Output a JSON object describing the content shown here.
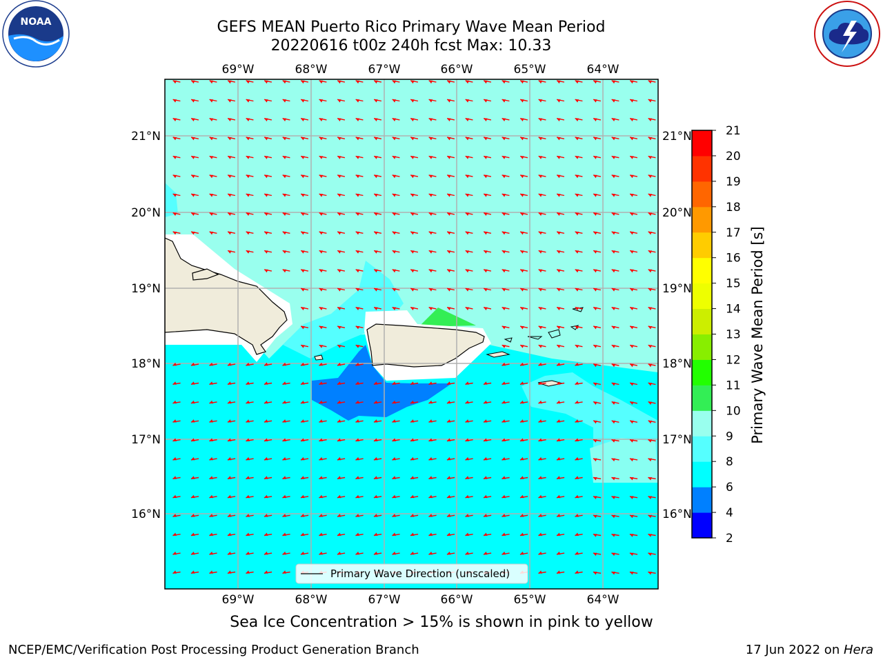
{
  "title": {
    "line1": "GEFS MEAN Puerto Rico Primary Wave Mean Period",
    "line2": "20220616 t00z 240h fcst   Max: 10.33"
  },
  "logos": {
    "noaa_text": "NOAA",
    "noaa_ring_text": "NATIONAL OCEANIC AND ATMOSPHERIC ADMINISTRATION · U.S. DEPARTMENT OF COMMERCE",
    "nws_ring_text": "NATIONAL WEATHER SERVICE",
    "noaa_icon": "noaa-logo-icon",
    "nws_icon": "nws-logo-icon"
  },
  "map": {
    "lon_labels": [
      "69°W",
      "68°W",
      "67°W",
      "66°W",
      "65°W",
      "64°W"
    ],
    "lat_labels": [
      "21°N",
      "20°N",
      "19°N",
      "18°N",
      "17°N",
      "16°N"
    ],
    "extent": {
      "lon_min": -70.0,
      "lon_max": -63.25,
      "lat_min": 15.0,
      "lat_max": 21.75
    },
    "wave_direction": "from east-northeast toward west-southwest (south of islands: toward west-northwest)",
    "arrow_color": "#ff0000",
    "land_color": "#f0ecdb"
  },
  "legend": {
    "label": "Primary Wave Direction (unscaled)"
  },
  "colorbar": {
    "title": "Primary Wave Mean Period [s]",
    "ticks": [
      "2",
      "4",
      "6",
      "8",
      "9",
      "10",
      "11",
      "12",
      "13",
      "14",
      "15",
      "16",
      "17",
      "18",
      "19",
      "20",
      "21"
    ],
    "colors": [
      "#0000ff",
      "#0080ff",
      "#00ffff",
      "#55ffff",
      "#99ffee",
      "#33ee55",
      "#22ff00",
      "#88ee00",
      "#ccee00",
      "#eeff00",
      "#ffff00",
      "#ffcc00",
      "#ff9900",
      "#ff6600",
      "#ff3300",
      "#ff0000"
    ]
  },
  "footer": {
    "note": "Sea Ice Concentration > 15% is shown in pink to yellow",
    "left": "NCEP/EMC/Verification Post Processing Product Generation Branch",
    "right_prefix": "17 Jun 2022 on ",
    "right_host": "Hera"
  }
}
